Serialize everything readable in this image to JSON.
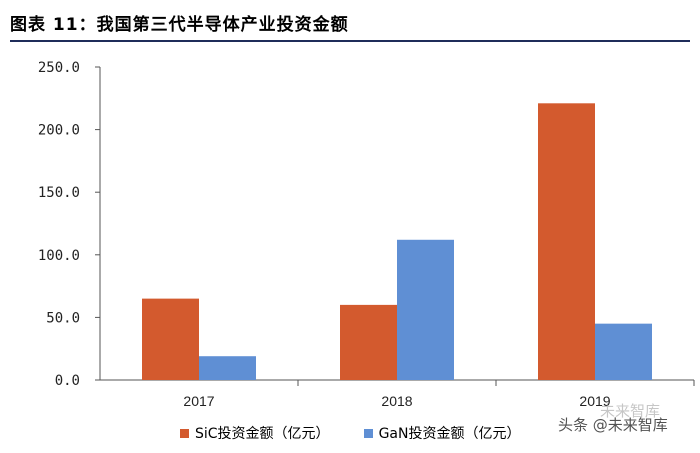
{
  "header": {
    "title": "图表 11：我国第三代半导体产业投资金额"
  },
  "colors": {
    "sic": "#d35a2e",
    "gan": "#5f8fd4",
    "header_rule": "#1f2d5a"
  },
  "chart_data": {
    "type": "bar",
    "title": "",
    "xlabel": "",
    "ylabel": "",
    "categories": [
      "2017",
      "2018",
      "2019"
    ],
    "series": [
      {
        "name": "SiC投资金额（亿元）",
        "values": [
          65.0,
          60.0,
          221.0
        ]
      },
      {
        "name": "GaN投资金额（亿元）",
        "values": [
          19.0,
          112.0,
          45.0
        ]
      }
    ],
    "ylim": [
      0,
      250
    ],
    "yticks": [
      "0.0",
      "50.0",
      "100.0",
      "150.0",
      "200.0",
      "250.0"
    ],
    "grid": false,
    "legend_position": "bottom"
  },
  "watermark": {
    "text": "头条 @未来智库",
    "text_faded": "未来智库"
  }
}
